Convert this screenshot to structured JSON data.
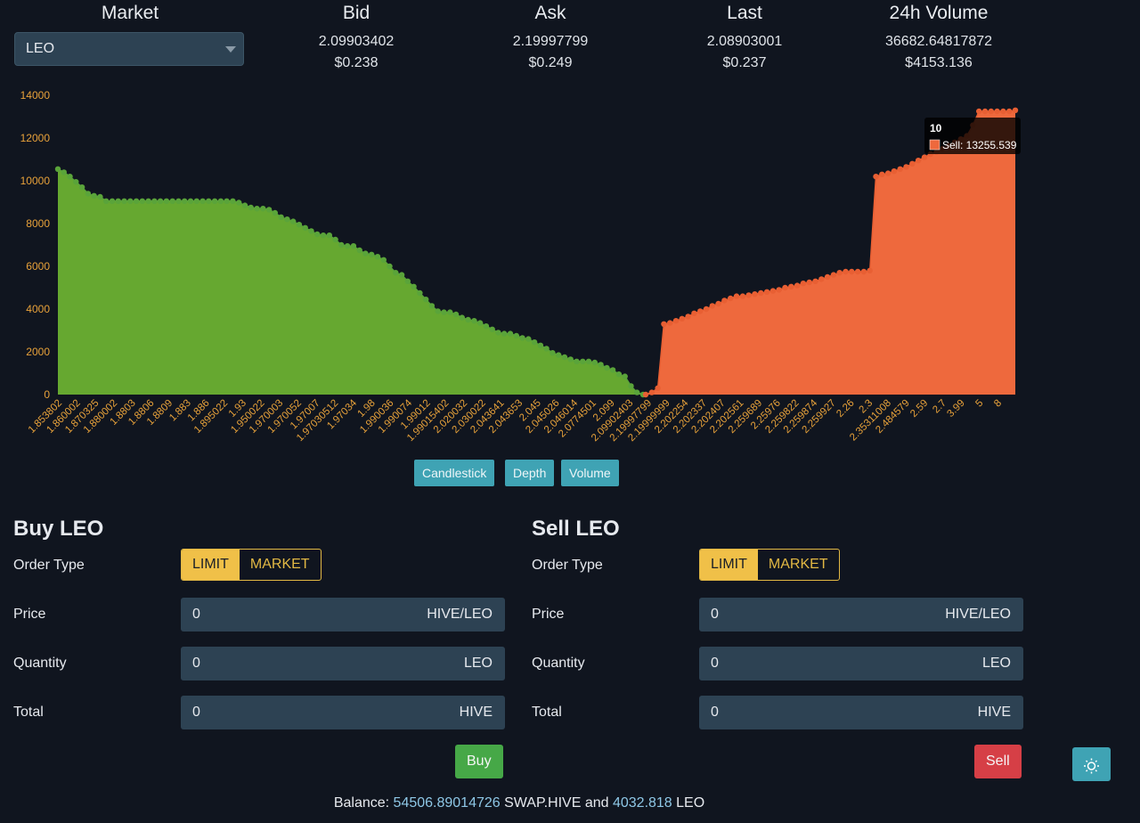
{
  "header": {
    "market": {
      "label": "Market",
      "selected": "LEO"
    },
    "bid": {
      "label": "Bid",
      "value": "2.09903402",
      "usd": "$0.238"
    },
    "ask": {
      "label": "Ask",
      "value": "2.19997799",
      "usd": "$0.249"
    },
    "last": {
      "label": "Last",
      "value": "2.08903001",
      "usd": "$0.237"
    },
    "volume": {
      "label": "24h Volume",
      "value": "36682.64817872",
      "usd": "$4153.136"
    }
  },
  "chart_data": {
    "type": "area",
    "yticks": [
      "0",
      "2000",
      "4000",
      "6000",
      "8000",
      "10000",
      "12000",
      "14000"
    ],
    "ylim": [
      0,
      14000
    ],
    "grid": false,
    "tooltip": {
      "title": "10",
      "series": "Sell",
      "value": "13255.539"
    },
    "xtick_labels": [
      "1.853802",
      "1.860002",
      "1.870325",
      "1.880002",
      "1.8803",
      "1.8806",
      "1.8809",
      "1.883",
      "1.886",
      "1.895022",
      "1.93",
      "1.950022",
      "1.970003",
      "1.970052",
      "1.97007",
      "1.97030512",
      "1.97034",
      "1.98",
      "1.990036",
      "1.990074",
      "1.99012",
      "1.99015402",
      "2.020032",
      "2.030022",
      "2.043641",
      "2.043653",
      "2.045",
      "2.045026",
      "2.046014",
      "2.0774501",
      "2.099",
      "2.09902403",
      "2.19997799",
      "2.19999999",
      "2.202254",
      "2.202337",
      "2.202407",
      "2.202561",
      "2.259689",
      "2.25976",
      "2.259822",
      "2.259874",
      "2.259927",
      "2.26",
      "2.3",
      "2.35311008",
      "2.484579",
      "2.59",
      "2.7",
      "3.99",
      "5",
      "8"
    ],
    "series": [
      {
        "name": "Buy",
        "color": "#66a830",
        "values": [
          10550,
          10400,
          10200,
          9950,
          9700,
          9400,
          9300,
          9250,
          9050,
          9050,
          9050,
          9050,
          9050,
          9050,
          9050,
          9050,
          9050,
          9050,
          9050,
          9050,
          9050,
          9050,
          9050,
          9050,
          9050,
          9050,
          9050,
          9050,
          9050,
          9050,
          8980,
          8850,
          8750,
          8700,
          8700,
          8650,
          8500,
          8300,
          8200,
          8100,
          7950,
          7800,
          7650,
          7500,
          7450,
          7450,
          7250,
          7000,
          6950,
          6950,
          6750,
          6600,
          6550,
          6450,
          6300,
          6000,
          5700,
          5600,
          5300,
          5050,
          4750,
          4450,
          4150,
          3900,
          3850,
          3850,
          3750,
          3600,
          3500,
          3450,
          3350,
          3200,
          3050,
          2900,
          2850,
          2850,
          2750,
          2650,
          2600,
          2450,
          2300,
          2150,
          1950,
          1850,
          1750,
          1650,
          1550,
          1550,
          1550,
          1500,
          1400,
          1250,
          1150,
          950,
          850,
          400,
          100,
          0
        ]
      },
      {
        "name": "Sell",
        "color": "#ee693d",
        "values": [
          0,
          100,
          300,
          3300,
          3350,
          3450,
          3550,
          3650,
          3800,
          3900,
          4000,
          4150,
          4250,
          4400,
          4500,
          4600,
          4600,
          4650,
          4700,
          4750,
          4800,
          4850,
          4900,
          5000,
          5050,
          5100,
          5200,
          5250,
          5300,
          5400,
          5500,
          5600,
          5700,
          5750,
          5750,
          5750,
          5750,
          5800,
          10200,
          10300,
          10350,
          10450,
          10550,
          10650,
          10800,
          10950,
          11100,
          11250,
          11350,
          11500,
          11650,
          11800,
          11950,
          12100,
          12600,
          13250,
          13250,
          13250,
          13250,
          13250,
          13250,
          13300
        ]
      }
    ]
  },
  "chart_buttons": [
    "Candlestick",
    "Depth",
    "Volume"
  ],
  "buy": {
    "title": "Buy LEO",
    "order_type_label": "Order Type",
    "limit": "LIMIT",
    "market": "MARKET",
    "price_label": "Price",
    "price_value": "0",
    "price_unit": "HIVE/LEO",
    "quantity_label": "Quantity",
    "quantity_value": "0",
    "quantity_unit": "LEO",
    "total_label": "Total",
    "total_value": "0",
    "total_unit": "HIVE",
    "button": "Buy"
  },
  "sell": {
    "title": "Sell LEO",
    "order_type_label": "Order Type",
    "limit": "LIMIT",
    "market": "MARKET",
    "price_label": "Price",
    "price_value": "0",
    "price_unit": "HIVE/LEO",
    "quantity_label": "Quantity",
    "quantity_value": "0",
    "quantity_unit": "LEO",
    "total_label": "Total",
    "total_value": "0",
    "total_unit": "HIVE",
    "button": "Sell"
  },
  "balance": {
    "prefix": "Balance:",
    "swap_hive": "54506.89014726",
    "swap_hive_unit": "SWAP.HIVE and",
    "leo": "4032.818",
    "leo_unit": "LEO"
  },
  "theme_icon": "sun-icon"
}
